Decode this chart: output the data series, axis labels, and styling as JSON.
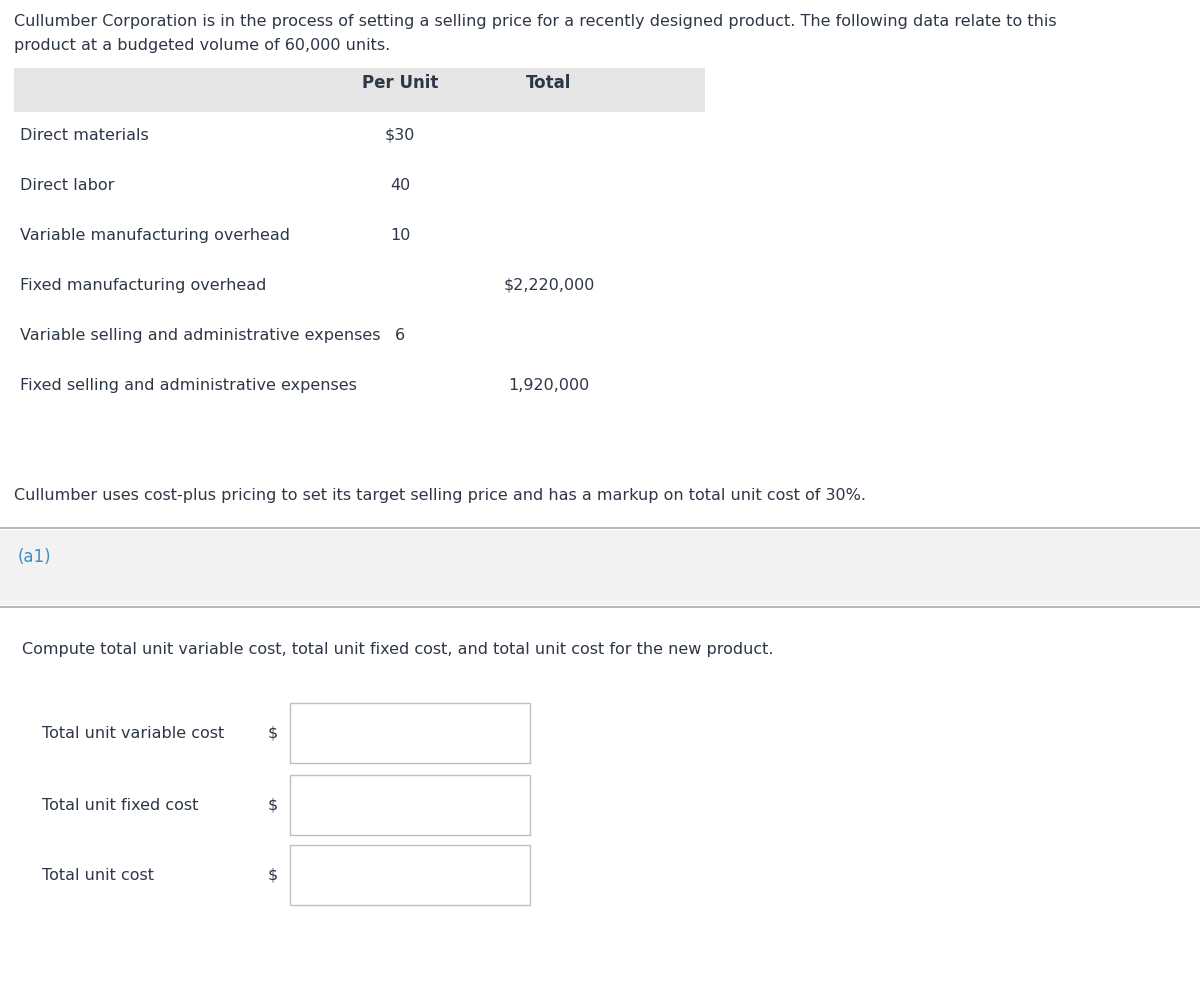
{
  "intro_text_line1": "Cullumber Corporation is in the process of setting a selling price for a recently designed product. The following data relate to this",
  "intro_text_line2": "product at a budgeted volume of 60,000 units.",
  "table_header": [
    "Per Unit",
    "Total"
  ],
  "table_rows": [
    {
      "label": "Direct materials",
      "per_unit": "$30",
      "total": ""
    },
    {
      "label": "Direct labor",
      "per_unit": "40",
      "total": ""
    },
    {
      "label": "Variable manufacturing overhead",
      "per_unit": "10",
      "total": ""
    },
    {
      "label": "Fixed manufacturing overhead",
      "per_unit": "",
      "total": "$2,220,000"
    },
    {
      "label": "Variable selling and administrative expenses",
      "per_unit": "6",
      "total": ""
    },
    {
      "label": "Fixed selling and administrative expenses",
      "per_unit": "",
      "total": "1,920,000"
    }
  ],
  "footer_text": "Cullumber uses cost-plus pricing to set its target selling price and has a markup on total unit cost of 30%.",
  "section_label": "(a1)",
  "instruction_text": "Compute total unit variable cost, total unit fixed cost, and total unit cost for the new product.",
  "input_labels": [
    "Total unit variable cost",
    "Total unit fixed cost",
    "Total unit cost"
  ],
  "header_bg": "#e5e5e5",
  "section_bg": "#f2f2f2",
  "text_color": "#2d3748",
  "blue_color": "#3a8fc7",
  "border_color": "#c0c0c0",
  "input_box_color": "#ffffff",
  "bg_color": "#ffffff",
  "separator_color": "#aaaaaa",
  "fig_width": 12.0,
  "fig_height": 9.92,
  "dpi": 100
}
